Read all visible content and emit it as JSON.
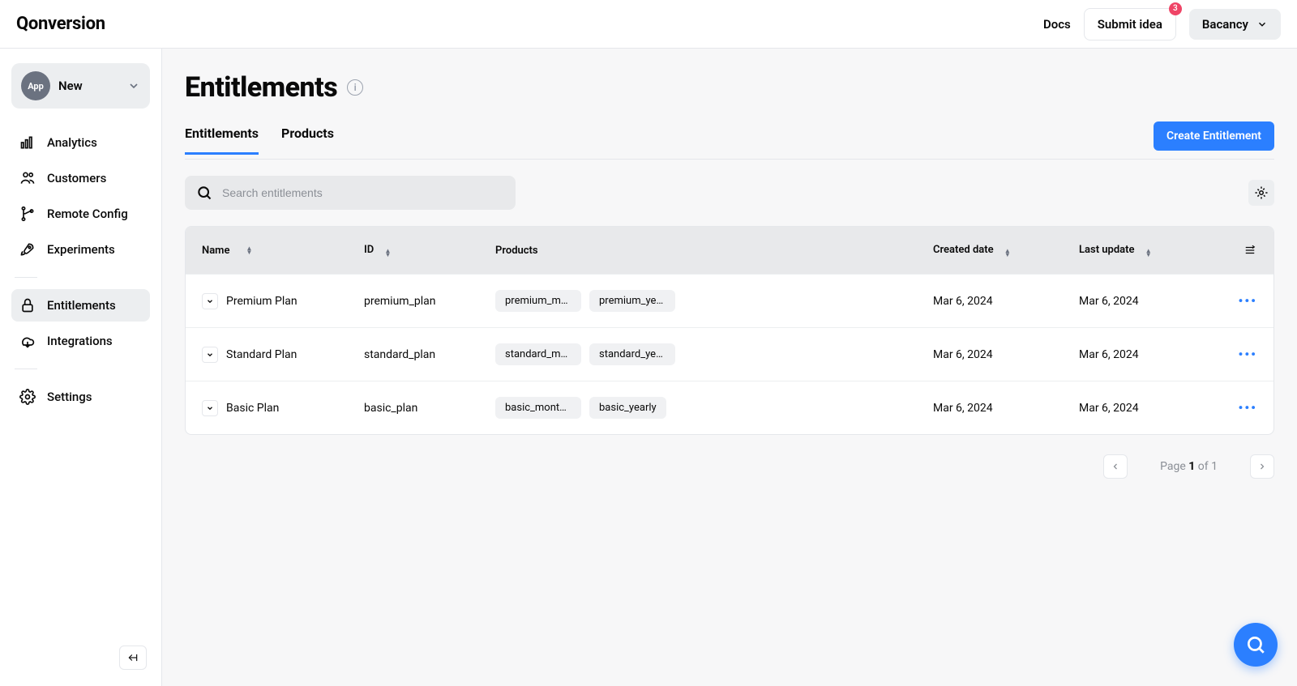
{
  "header": {
    "logo": "Qonversion",
    "docs": "Docs",
    "submit_idea": "Submit idea",
    "submit_badge": "3",
    "org_name": "Bacancy"
  },
  "sidebar": {
    "app_chip": "App",
    "app_name": "New",
    "items": [
      {
        "label": "Analytics"
      },
      {
        "label": "Customers"
      },
      {
        "label": "Remote Config"
      },
      {
        "label": "Experiments"
      },
      {
        "label": "Entitlements"
      },
      {
        "label": "Integrations"
      },
      {
        "label": "Settings"
      }
    ]
  },
  "page": {
    "title": "Entitlements",
    "tabs": [
      {
        "label": "Entitlements"
      },
      {
        "label": "Products"
      }
    ],
    "create_button": "Create Entitlement",
    "search_placeholder": "Search entitlements"
  },
  "table": {
    "columns": {
      "name": "Name",
      "id": "ID",
      "products": "Products",
      "created": "Created date",
      "updated": "Last update"
    },
    "rows": [
      {
        "name": "Premium Plan",
        "id": "premium_plan",
        "products": [
          "premium_monthly",
          "premium_yearly"
        ],
        "created": "Mar 6, 2024",
        "updated": "Mar 6, 2024"
      },
      {
        "name": "Standard Plan",
        "id": "standard_plan",
        "products": [
          "standard_monthly",
          "standard_yearly"
        ],
        "created": "Mar 6, 2024",
        "updated": "Mar 6, 2024"
      },
      {
        "name": "Basic Plan",
        "id": "basic_plan",
        "products": [
          "basic_monthly",
          "basic_yearly"
        ],
        "created": "Mar 6, 2024",
        "updated": "Mar 6, 2024"
      }
    ]
  },
  "pagination": {
    "label_prefix": "Page ",
    "current": "1",
    "sep": " of ",
    "total": "1"
  },
  "colors": {
    "primary": "#2b7fff",
    "bg": "#f7f7f8",
    "border": "#e5e7eb",
    "header_bg": "#e8e9eb",
    "muted_bg": "#eceef0",
    "tag_bg": "#f0f1f3",
    "badge": "#ef4466"
  }
}
